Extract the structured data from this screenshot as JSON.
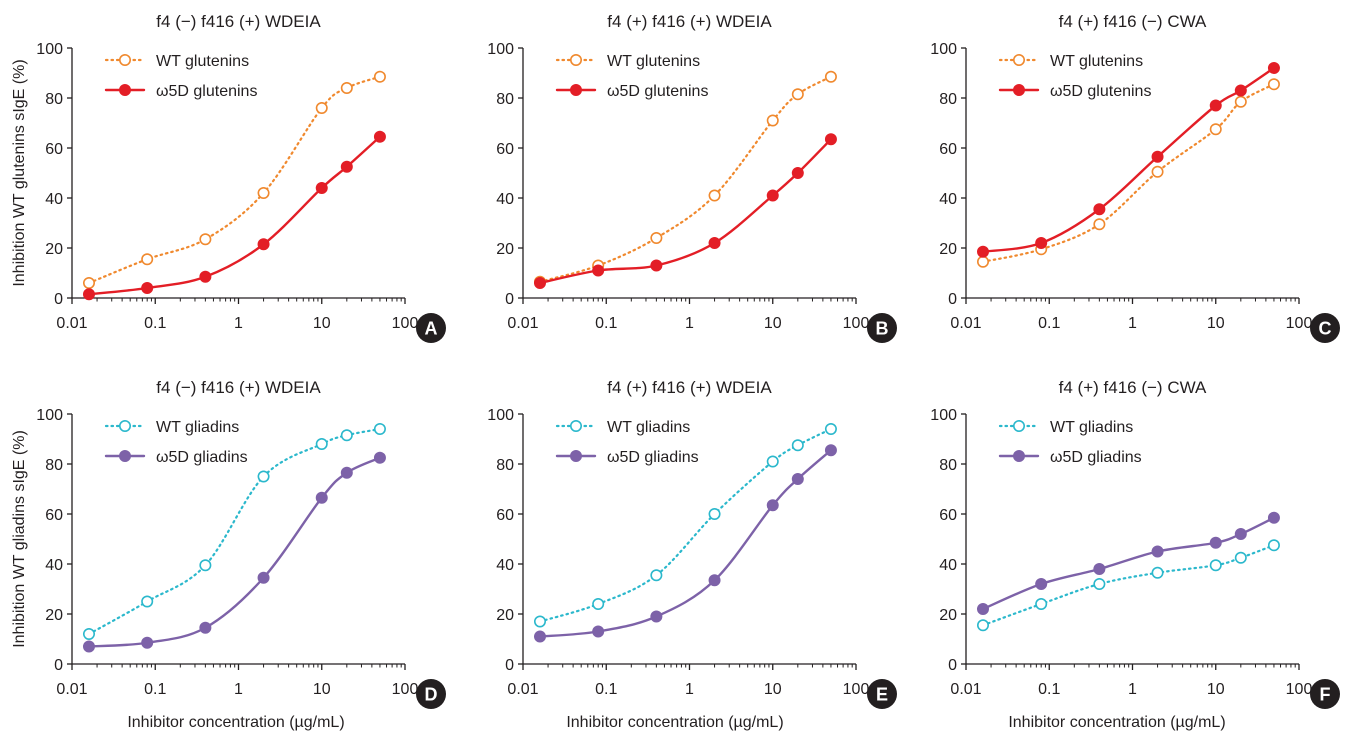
{
  "figure": {
    "ylabel_top": "Inhibition WT glutenins sIgE (%)",
    "ylabel_bottom": "Inhibition WT gliadins sIgE (%)",
    "xlabel": "Inhibitor concentration (µg/mL)"
  },
  "colors": {
    "wt_glutenins": "#f0892e",
    "o5d_glutenins": "#e31e26",
    "wt_gliadins": "#2bb8cc",
    "o5d_gliadins": "#7d62a8",
    "badge": "#231f20"
  },
  "chart_data": [
    {
      "type": "line",
      "panel": "A",
      "title": "f4 (−) f416 (+) WDEIA",
      "xscale": "log",
      "xlim": [
        0.01,
        100
      ],
      "ylim": [
        0,
        100
      ],
      "xticks": [
        "0.01",
        "0.1",
        "1",
        "10",
        "100"
      ],
      "yticks": [
        "0",
        "20",
        "40",
        "60",
        "80",
        "100"
      ],
      "legend": "top-left",
      "x": [
        0.016,
        0.08,
        0.4,
        2,
        10,
        20,
        50
      ],
      "series": [
        {
          "name": "WT glutenins",
          "style": "dotted-open",
          "color_key": "wt_glutenins",
          "values": [
            6,
            15.5,
            23.5,
            42,
            76,
            84,
            88.5
          ]
        },
        {
          "name": "ω5D glutenins",
          "style": "solid-filled",
          "color_key": "o5d_glutenins",
          "values": [
            1.5,
            4,
            8.5,
            21.5,
            44,
            52.5,
            64.5
          ]
        }
      ]
    },
    {
      "type": "line",
      "panel": "B",
      "title": "f4 (+) f416 (+) WDEIA",
      "xscale": "log",
      "xlim": [
        0.01,
        100
      ],
      "ylim": [
        0,
        100
      ],
      "xticks": [
        "0.01",
        "0.1",
        "1",
        "10",
        "100"
      ],
      "yticks": [
        "0",
        "20",
        "40",
        "60",
        "80",
        "100"
      ],
      "legend": "top-left",
      "x": [
        0.016,
        0.08,
        0.4,
        2,
        10,
        20,
        50
      ],
      "series": [
        {
          "name": "WT glutenins",
          "style": "dotted-open",
          "color_key": "wt_glutenins",
          "values": [
            6.5,
            13,
            24,
            41,
            71,
            81.5,
            88.5
          ]
        },
        {
          "name": "ω5D glutenins",
          "style": "solid-filled",
          "color_key": "o5d_glutenins",
          "values": [
            6,
            11,
            13,
            22,
            41,
            50,
            63.5
          ]
        }
      ]
    },
    {
      "type": "line",
      "panel": "C",
      "title": "f4 (+) f416 (−) CWA",
      "xscale": "log",
      "xlim": [
        0.01,
        100
      ],
      "ylim": [
        0,
        100
      ],
      "xticks": [
        "0.01",
        "0.1",
        "1",
        "10",
        "100"
      ],
      "yticks": [
        "0",
        "20",
        "40",
        "60",
        "80",
        "100"
      ],
      "legend": "top-left",
      "x": [
        0.016,
        0.08,
        0.4,
        2,
        10,
        20,
        50
      ],
      "series": [
        {
          "name": "WT glutenins",
          "style": "dotted-open",
          "color_key": "wt_glutenins",
          "values": [
            14.5,
            19.5,
            29.5,
            50.5,
            67.5,
            78.5,
            85.5
          ]
        },
        {
          "name": "ω5D glutenins",
          "style": "solid-filled",
          "color_key": "o5d_glutenins",
          "values": [
            18.5,
            22,
            35.5,
            56.5,
            77,
            83,
            92
          ]
        }
      ]
    },
    {
      "type": "line",
      "panel": "D",
      "title": "f4 (−) f416 (+) WDEIA",
      "xscale": "log",
      "xlim": [
        0.01,
        100
      ],
      "ylim": [
        0,
        100
      ],
      "xticks": [
        "0.01",
        "0.1",
        "1",
        "10",
        "100"
      ],
      "yticks": [
        "0",
        "20",
        "40",
        "60",
        "80",
        "100"
      ],
      "legend": "top-left",
      "x": [
        0.016,
        0.08,
        0.4,
        2,
        10,
        20,
        50
      ],
      "series": [
        {
          "name": "WT gliadins",
          "style": "dotted-open",
          "color_key": "wt_gliadins",
          "values": [
            12,
            25,
            39.5,
            75,
            88,
            91.5,
            94
          ]
        },
        {
          "name": "ω5D gliadins",
          "style": "solid-filled",
          "color_key": "o5d_gliadins",
          "values": [
            7,
            8.5,
            14.5,
            34.5,
            66.5,
            76.5,
            82.5
          ]
        }
      ]
    },
    {
      "type": "line",
      "panel": "E",
      "title": "f4 (+) f416 (+) WDEIA",
      "xscale": "log",
      "xlim": [
        0.01,
        100
      ],
      "ylim": [
        0,
        100
      ],
      "xticks": [
        "0.01",
        "0.1",
        "1",
        "10",
        "100"
      ],
      "yticks": [
        "0",
        "20",
        "40",
        "60",
        "80",
        "100"
      ],
      "legend": "top-left",
      "x": [
        0.016,
        0.08,
        0.4,
        2,
        10,
        20,
        50
      ],
      "series": [
        {
          "name": "WT gliadins",
          "style": "dotted-open",
          "color_key": "wt_gliadins",
          "values": [
            17,
            24,
            35.5,
            60,
            81,
            87.5,
            94
          ]
        },
        {
          "name": "ω5D gliadins",
          "style": "solid-filled",
          "color_key": "o5d_gliadins",
          "values": [
            11,
            13,
            19,
            33.5,
            63.5,
            74,
            85.5
          ]
        }
      ]
    },
    {
      "type": "line",
      "panel": "F",
      "title": "f4 (+) f416 (−) CWA",
      "xscale": "log",
      "xlim": [
        0.01,
        100
      ],
      "ylim": [
        0,
        100
      ],
      "xticks": [
        "0.01",
        "0.1",
        "1",
        "10",
        "100"
      ],
      "yticks": [
        "0",
        "20",
        "40",
        "60",
        "80",
        "100"
      ],
      "legend": "top-left",
      "x": [
        0.016,
        0.08,
        0.4,
        2,
        10,
        20,
        50
      ],
      "series": [
        {
          "name": "WT gliadins",
          "style": "dotted-open",
          "color_key": "wt_gliadins",
          "values": [
            15.5,
            24,
            32,
            36.5,
            39.5,
            42.5,
            47.5
          ]
        },
        {
          "name": "ω5D gliadins",
          "style": "solid-filled",
          "color_key": "o5d_gliadins",
          "values": [
            22,
            32,
            38,
            45,
            48.5,
            52,
            58.5
          ]
        }
      ]
    }
  ]
}
